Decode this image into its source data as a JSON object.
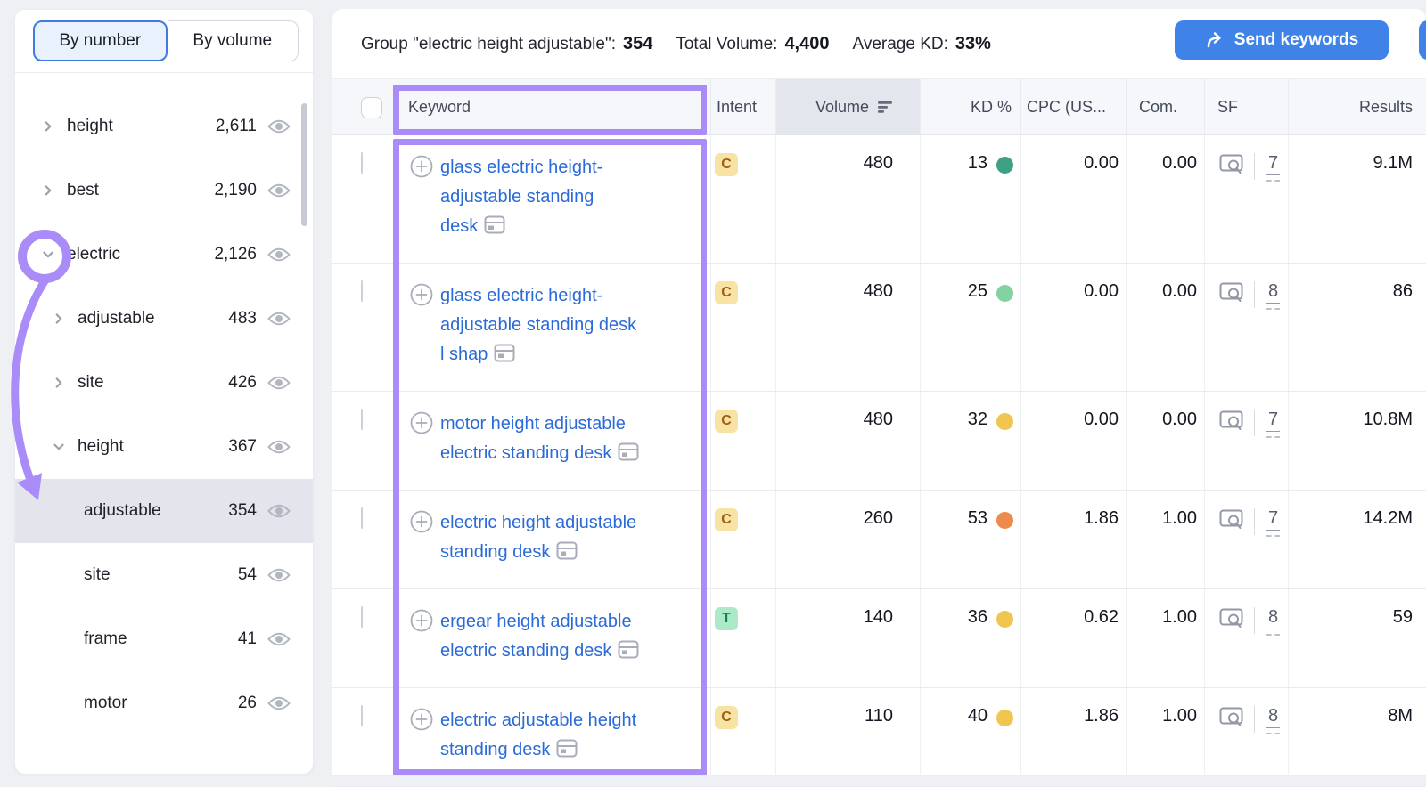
{
  "sidebar": {
    "tabs": [
      {
        "label": "By number",
        "active": true
      },
      {
        "label": "By volume",
        "active": false
      }
    ],
    "items": [
      {
        "label": "height",
        "count": "2,611",
        "level": 1,
        "chevron": "right",
        "selected": false
      },
      {
        "label": "best",
        "count": "2,190",
        "level": 1,
        "chevron": "right",
        "selected": false
      },
      {
        "label": "electric",
        "count": "2,126",
        "level": 1,
        "chevron": "down",
        "selected": false
      },
      {
        "label": "adjustable",
        "count": "483",
        "level": 2,
        "chevron": "right",
        "selected": false
      },
      {
        "label": "site",
        "count": "426",
        "level": 2,
        "chevron": "right",
        "selected": false
      },
      {
        "label": "height",
        "count": "367",
        "level": 2,
        "chevron": "down",
        "selected": false
      },
      {
        "label": "adjustable",
        "count": "354",
        "level": 3,
        "chevron": "none",
        "selected": true
      },
      {
        "label": "site",
        "count": "54",
        "level": 3,
        "chevron": "none",
        "selected": false
      },
      {
        "label": "frame",
        "count": "41",
        "level": 3,
        "chevron": "none",
        "selected": false
      },
      {
        "label": "motor",
        "count": "26",
        "level": 3,
        "chevron": "none",
        "selected": false
      }
    ]
  },
  "toolbar": {
    "group_label": "Group \"electric height adjustable\":",
    "group_count": "354",
    "total_volume_label": "Total Volume:",
    "total_volume": "4,400",
    "avg_kd_label": "Average KD:",
    "avg_kd": "33%",
    "send_button": "Send keywords"
  },
  "table": {
    "headers": {
      "keyword": "Keyword",
      "intent": "Intent",
      "volume": "Volume",
      "kd": "KD %",
      "cpc": "CPC (US...",
      "com": "Com.",
      "sf": "SF",
      "results": "Results"
    },
    "rows": [
      {
        "keyword": "glass electric height-adjustable standing desk",
        "intent": "C",
        "volume": "480",
        "kd": "13",
        "kd_dot": "#3fa183",
        "cpc": "0.00",
        "com": "0.00",
        "sf": "7",
        "results": "9.1M"
      },
      {
        "keyword": "glass electric height-adjustable standing desk l shap",
        "intent": "C",
        "volume": "480",
        "kd": "25",
        "kd_dot": "#83d2a2",
        "cpc": "0.00",
        "com": "0.00",
        "sf": "8",
        "results": "86"
      },
      {
        "keyword": "motor height adjustable electric standing desk",
        "intent": "C",
        "volume": "480",
        "kd": "32",
        "kd_dot": "#f0c550",
        "cpc": "0.00",
        "com": "0.00",
        "sf": "7",
        "results": "10.8M"
      },
      {
        "keyword": "electric height adjustable standing desk",
        "intent": "C",
        "volume": "260",
        "kd": "53",
        "kd_dot": "#ef8a4d",
        "cpc": "1.86",
        "com": "1.00",
        "sf": "7",
        "results": "14.2M"
      },
      {
        "keyword": "ergear height adjustable electric standing desk",
        "intent": "T",
        "volume": "140",
        "kd": "36",
        "kd_dot": "#f0c550",
        "cpc": "0.62",
        "com": "1.00",
        "sf": "8",
        "results": "59"
      },
      {
        "keyword": "electric adjustable height standing desk",
        "intent": "C",
        "volume": "110",
        "kd": "40",
        "kd_dot": "#f0c550",
        "cpc": "1.86",
        "com": "1.00",
        "sf": "8",
        "results": "8M"
      }
    ]
  },
  "colors": {
    "annotation_purple": "#a98cf8",
    "link_blue": "#2a6bd8",
    "button_blue": "#3f82e8",
    "tab_active_bg": "#e9f1fd",
    "tab_active_border": "#3f7be0",
    "selected_row_bg": "#e4e4ed",
    "volume_header_bg": "#e4e6ed",
    "badge_c_bg": "#f7e3a4",
    "badge_c_text": "#a35d14",
    "badge_t_bg": "#abe9c9",
    "badge_t_text": "#11834f",
    "kd_green": "#3fa183",
    "kd_light_green": "#83d2a2",
    "kd_yellow": "#f0c550",
    "kd_orange": "#ef8a4d"
  }
}
